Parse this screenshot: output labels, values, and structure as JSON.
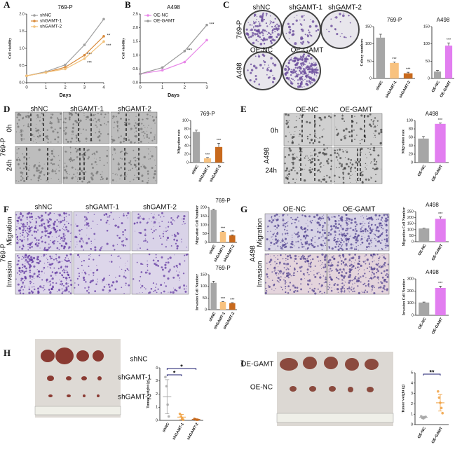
{
  "panel_letters": [
    "A",
    "B",
    "C",
    "D",
    "E",
    "F",
    "G",
    "H",
    "I"
  ],
  "image_labels": [
    "shNC",
    "shGAMT-1",
    "shGAMT-2",
    "769-P",
    "OE-NC",
    "OE-GAMT",
    "A498",
    "shNC",
    "shGAMT-1",
    "shGAMT-2",
    "0h",
    "24h",
    "769-P",
    "OE-NC",
    "OE-GAMT",
    "0h",
    "24h",
    "A498",
    "shNC",
    "shGAMT-1",
    "shGAMT-2",
    "Migration",
    "Invasion",
    "769-P",
    "OE-NC",
    "OE-GAMT",
    "Migration",
    "Invasion",
    "A498",
    "shNC",
    "shGAMT-1",
    "shGAMT-2",
    "OE-GAMT",
    "OE-NC"
  ],
  "chart_data": [
    {
      "type": "line",
      "title": "769-P",
      "x_label": "Days",
      "y_label": "Cell viability",
      "x": [
        0,
        1,
        2,
        3,
        4
      ],
      "xlim": [
        0,
        4
      ],
      "xticks": [
        0,
        1,
        2,
        3,
        4
      ],
      "ylim": [
        0,
        2
      ],
      "yticks": [
        {
          "value": 0,
          "label": "0.0"
        },
        {
          "value": 0.5,
          "label": "0.5"
        },
        {
          "value": 1,
          "label": "1.0"
        },
        {
          "value": 1.5,
          "label": "1.5"
        },
        {
          "value": 2,
          "label": "2.0"
        }
      ],
      "series": [
        {
          "name": "shNC",
          "color": "#a0a0a0",
          "values": [
            0.2,
            0.32,
            0.52,
            1.1,
            1.85
          ]
        },
        {
          "name": "shGAMT-1",
          "color": "#d98a3a",
          "values": [
            0.2,
            0.3,
            0.45,
            0.8,
            1.35
          ],
          "annotations": [
            null,
            null,
            null,
            "***",
            "**"
          ]
        },
        {
          "name": "shGAMT-2",
          "color": "#f2c27c",
          "values": [
            0.2,
            0.3,
            0.4,
            0.7,
            1.2
          ],
          "annotations": [
            null,
            null,
            null,
            "***",
            "***"
          ]
        }
      ]
    },
    {
      "type": "line",
      "title": "A498",
      "x_label": "Days",
      "y_label": "Cell viability",
      "x": [
        0,
        1,
        2,
        3
      ],
      "xlim": [
        0,
        3
      ],
      "xticks": [
        0,
        1,
        2,
        3
      ],
      "ylim": [
        0,
        2.5
      ],
      "yticks": [
        {
          "value": 0,
          "label": "0.0"
        },
        {
          "value": 0.5,
          "label": "0.5"
        },
        {
          "value": 1,
          "label": "1.0"
        },
        {
          "value": 1.5,
          "label": "1.5"
        },
        {
          "value": 2,
          "label": "2.0"
        },
        {
          "value": 2.5,
          "label": "2.5"
        }
      ],
      "series": [
        {
          "name": "OE-NC",
          "color": "#e887e8",
          "values": [
            0.32,
            0.45,
            0.75,
            1.55
          ]
        },
        {
          "name": "OE-GAMT",
          "color": "#9a9a9a",
          "values": [
            0.32,
            0.55,
            1.15,
            2.1
          ],
          "annotations": [
            null,
            null,
            "***",
            "***"
          ]
        }
      ]
    },
    {
      "type": "bar",
      "title": "769-P",
      "y_label": "Colony numbers",
      "categories": [
        "shNC",
        "shGAMT-1",
        "shGAMT-2"
      ],
      "values": [
        118,
        45,
        15
      ],
      "errors": [
        10,
        3,
        3
      ],
      "colors": [
        "#a6a6a6",
        "#f8c27f",
        "#c8691c"
      ],
      "annotations": [
        null,
        "***",
        "***"
      ],
      "ylim": [
        0,
        150
      ],
      "yticks": [
        0,
        50,
        100,
        150
      ]
    },
    {
      "type": "bar",
      "title": "A498",
      "categories": [
        "OE-NC",
        "OE-GAMT"
      ],
      "values": [
        20,
        95
      ],
      "errors": [
        3,
        8
      ],
      "colors": [
        "#a6a6a6",
        "#e27ef0"
      ],
      "annotations": [
        null,
        "***"
      ],
      "ylim": [
        0,
        150
      ],
      "yticks": [
        0,
        50,
        100,
        150
      ]
    },
    {
      "type": "bar",
      "title": "769-P",
      "y_label": "Migration rate",
      "categories": [
        "shNC",
        "shGAMT-1",
        "shGAMT-2"
      ],
      "values": [
        73,
        10,
        37
      ],
      "errors": [
        4,
        2,
        9
      ],
      "colors": [
        "#a6a6a6",
        "#f8c27f",
        "#c8691c"
      ],
      "annotations": [
        null,
        "***",
        "***"
      ],
      "ylim": [
        0,
        100
      ],
      "yticks": [
        0,
        20,
        40,
        60,
        80,
        100
      ]
    },
    {
      "type": "bar",
      "title": "A498",
      "y_label": "Migration rate",
      "categories": [
        "OE-NC",
        "OE-GAMT"
      ],
      "values": [
        57,
        92
      ],
      "errors": [
        5,
        2
      ],
      "colors": [
        "#a6a6a6",
        "#e27ef0"
      ],
      "annotations": [
        null,
        "***"
      ],
      "ylim": [
        0,
        100
      ],
      "yticks": [
        0,
        20,
        40,
        60,
        80,
        100
      ]
    },
    {
      "type": "bar",
      "title": "769-P",
      "y_label": "Migration Cell Number",
      "categories": [
        "shNC",
        "shGAMT-1",
        "shGAMT-2"
      ],
      "values": [
        185,
        60,
        40
      ],
      "errors": [
        4,
        3,
        3
      ],
      "colors": [
        "#a6a6a6",
        "#f8c27f",
        "#c8691c"
      ],
      "annotations": [
        null,
        "***",
        "***"
      ],
      "ylim": [
        0,
        200
      ],
      "yticks": [
        0,
        50,
        100,
        150,
        200
      ]
    },
    {
      "type": "bar",
      "title": "769-P",
      "y_label": "Invasion Cell Number",
      "categories": [
        "shNC",
        "shGAMT-1",
        "shGAMT-2"
      ],
      "values": [
        115,
        33,
        28
      ],
      "errors": [
        7,
        2,
        2
      ],
      "colors": [
        "#a6a6a6",
        "#f8c27f",
        "#c8691c"
      ],
      "annotations": [
        null,
        "***",
        "***"
      ],
      "ylim": [
        0,
        150
      ],
      "yticks": [
        0,
        50,
        100,
        150
      ]
    },
    {
      "type": "bar",
      "title": "A498",
      "y_label": "Migration Cell Number",
      "categories": [
        "OE-NC",
        "OE-GAMT"
      ],
      "values": [
        110,
        190
      ],
      "errors": [
        3,
        15
      ],
      "colors": [
        "#a6a6a6",
        "#e27ef0"
      ],
      "annotations": [
        null,
        "***"
      ],
      "ylim": [
        0,
        250
      ],
      "yticks": [
        0,
        50,
        100,
        150,
        200,
        250
      ]
    },
    {
      "type": "bar",
      "title": "A498",
      "y_label": "Invasion Cell Number",
      "categories": [
        "OE-NC",
        "OE-GAMT"
      ],
      "values": [
        105,
        225
      ],
      "errors": [
        4,
        15
      ],
      "colors": [
        "#a6a6a6",
        "#e27ef0"
      ],
      "annotations": [
        null,
        "***"
      ],
      "ylim": [
        0,
        300
      ],
      "yticks": [
        0,
        100,
        200,
        300
      ]
    },
    {
      "type": "dot",
      "y_label": "Tumor weight (g)",
      "categories": [
        "shNC",
        "shGAMT-1",
        "shGAMT-2"
      ],
      "values": [
        1.8,
        0.25,
        0.08
      ],
      "errors": [
        1.3,
        0.2,
        0.03
      ],
      "points": [
        [
          3.3,
          2.6,
          1.2,
          0.3
        ],
        [
          0.5,
          0.3,
          0.15,
          0.05
        ],
        [
          0.12,
          0.08,
          0.05,
          0.05
        ]
      ],
      "colors": [
        "#a6a6a6",
        "#f0a040",
        "#c8691c"
      ],
      "annotations": [
        "*",
        "*"
      ],
      "ylim": [
        0,
        4
      ],
      "yticks": [
        0,
        1,
        2,
        3,
        4
      ]
    },
    {
      "type": "dot",
      "y_label": "Tumor weight (g)",
      "categories": [
        "OE-NC",
        "OE-GAMT"
      ],
      "values": [
        0.7,
        2.1
      ],
      "errors": [
        0.1,
        0.8
      ],
      "points": [
        [
          0.8,
          0.65,
          0.6,
          0.7,
          0.75
        ],
        [
          3.2,
          2.6,
          2.1,
          1.6,
          1.1
        ]
      ],
      "colors": [
        "#a6a6a6",
        "#f0a040"
      ],
      "annotations": [
        "**"
      ],
      "ylim": [
        0,
        5
      ],
      "yticks": [
        0,
        1,
        2,
        3,
        4,
        5
      ]
    }
  ]
}
